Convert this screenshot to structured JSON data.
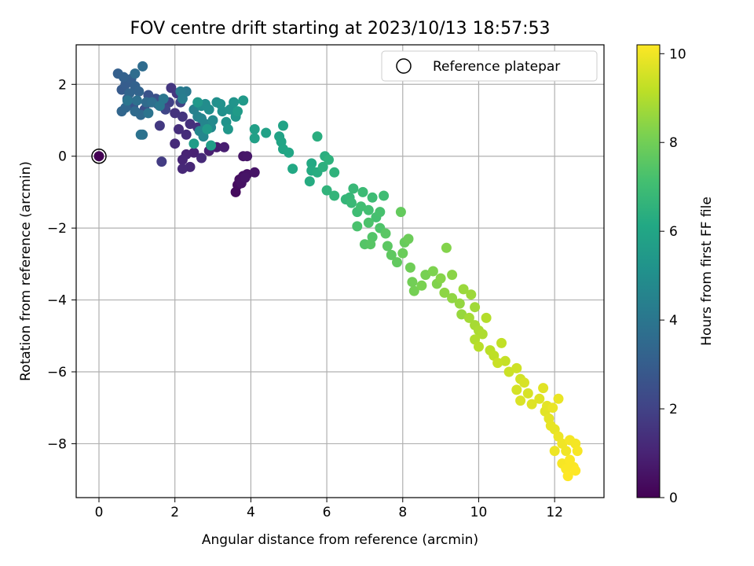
{
  "chart_data": {
    "type": "scatter",
    "title": "FOV centre drift starting at 2023/10/13 18:57:53",
    "xlabel": "Angular distance from reference (arcmin)",
    "ylabel": "Rotation from reference (arcmin)",
    "xlim": [
      -0.6,
      13.3
    ],
    "ylim": [
      -9.5,
      3.1
    ],
    "xticks": [
      0,
      2,
      4,
      6,
      8,
      10,
      12
    ],
    "yticks": [
      -8,
      -6,
      -4,
      -2,
      0,
      2
    ],
    "xtick_labels": [
      "0",
      "2",
      "4",
      "6",
      "8",
      "10",
      "12"
    ],
    "ytick_labels": [
      "−8",
      "−6",
      "−4",
      "−2",
      "0",
      "2"
    ],
    "grid": true,
    "legend": {
      "label": "Reference platepar",
      "position": "top-right"
    },
    "reference_point": {
      "x": 0,
      "y": 0
    },
    "colorbar": {
      "label": "Hours from first FF file",
      "range": [
        0,
        10.2
      ],
      "ticks": [
        0,
        2,
        4,
        6,
        8,
        10
      ],
      "tick_labels": [
        "0",
        "2",
        "4",
        "6",
        "8",
        "10"
      ],
      "colormap": "viridis"
    },
    "points": [
      [
        0.0,
        0.0,
        0.0
      ],
      [
        3.6,
        -1.0,
        0.3
      ],
      [
        3.65,
        -0.8,
        0.35
      ],
      [
        3.7,
        -0.65,
        0.4
      ],
      [
        3.8,
        -0.55,
        0.45
      ],
      [
        3.9,
        -0.5,
        0.5
      ],
      [
        4.1,
        -0.45,
        0.55
      ],
      [
        3.75,
        -0.75,
        0.5
      ],
      [
        3.85,
        -0.6,
        0.55
      ],
      [
        3.8,
        0.0,
        0.6
      ],
      [
        3.9,
        0.0,
        0.65
      ],
      [
        3.1,
        0.25,
        0.8
      ],
      [
        3.3,
        0.25,
        0.85
      ],
      [
        2.9,
        0.15,
        0.9
      ],
      [
        2.5,
        0.1,
        0.95
      ],
      [
        2.3,
        0.05,
        1.0
      ],
      [
        2.2,
        -0.1,
        1.05
      ],
      [
        2.4,
        -0.3,
        1.1
      ],
      [
        2.2,
        -0.35,
        1.15
      ],
      [
        2.7,
        -0.05,
        1.2
      ],
      [
        2.0,
        0.35,
        1.25
      ],
      [
        2.3,
        0.6,
        1.3
      ],
      [
        2.1,
        0.75,
        1.35
      ],
      [
        2.4,
        0.9,
        1.4
      ],
      [
        2.6,
        0.8,
        1.45
      ],
      [
        2.0,
        1.2,
        1.5
      ],
      [
        2.2,
        1.1,
        1.55
      ],
      [
        1.9,
        1.9,
        1.6
      ],
      [
        2.05,
        1.75,
        1.65
      ],
      [
        1.6,
        0.85,
        1.7
      ],
      [
        1.65,
        -0.15,
        1.8
      ],
      [
        1.85,
        1.5,
        1.9
      ],
      [
        2.15,
        1.5,
        2.0
      ],
      [
        1.75,
        1.3,
        2.1
      ],
      [
        1.55,
        1.45,
        2.2
      ],
      [
        1.35,
        1.5,
        2.3
      ],
      [
        1.2,
        1.3,
        2.4
      ],
      [
        1.5,
        1.6,
        2.5
      ],
      [
        1.3,
        1.7,
        2.6
      ],
      [
        0.9,
        1.4,
        2.7
      ],
      [
        0.75,
        1.6,
        2.8
      ],
      [
        0.6,
        1.85,
        2.9
      ],
      [
        0.7,
        2.0,
        3.0
      ],
      [
        0.85,
        2.15,
        3.05
      ],
      [
        0.5,
        2.3,
        3.1
      ],
      [
        0.65,
        2.2,
        3.15
      ],
      [
        0.95,
        1.95,
        3.2
      ],
      [
        1.05,
        1.8,
        3.25
      ],
      [
        0.8,
        1.75,
        3.3
      ],
      [
        0.6,
        1.25,
        3.35
      ],
      [
        0.7,
        1.35,
        3.4
      ],
      [
        1.1,
        1.15,
        3.45
      ],
      [
        0.95,
        1.25,
        3.5
      ],
      [
        1.25,
        1.5,
        3.55
      ],
      [
        1.15,
        2.5,
        3.6
      ],
      [
        0.95,
        2.3,
        3.65
      ],
      [
        1.4,
        1.5,
        3.7
      ],
      [
        1.0,
        1.55,
        3.75
      ],
      [
        1.15,
        0.6,
        3.8
      ],
      [
        1.1,
        0.6,
        3.85
      ],
      [
        1.3,
        1.2,
        3.9
      ],
      [
        0.75,
        1.55,
        3.95
      ],
      [
        1.7,
        1.6,
        4.0
      ],
      [
        1.6,
        1.4,
        4.05
      ],
      [
        2.3,
        1.8,
        4.1
      ],
      [
        2.15,
        1.8,
        4.2
      ],
      [
        2.2,
        1.6,
        4.3
      ],
      [
        2.5,
        1.3,
        4.4
      ],
      [
        2.6,
        1.1,
        4.5
      ],
      [
        2.7,
        1.05,
        4.55
      ],
      [
        2.8,
        0.9,
        4.6
      ],
      [
        2.65,
        0.7,
        4.65
      ],
      [
        2.75,
        0.55,
        4.7
      ],
      [
        2.95,
        0.8,
        4.75
      ],
      [
        3.0,
        1.0,
        4.8
      ],
      [
        2.7,
        1.4,
        4.85
      ],
      [
        2.8,
        1.45,
        4.9
      ],
      [
        2.9,
        1.3,
        4.95
      ],
      [
        3.1,
        1.5,
        5.0
      ],
      [
        3.25,
        1.25,
        5.05
      ],
      [
        3.2,
        1.45,
        5.1
      ],
      [
        3.45,
        1.3,
        5.15
      ],
      [
        3.35,
        0.95,
        5.2
      ],
      [
        3.55,
        1.5,
        5.25
      ],
      [
        3.6,
        1.1,
        5.3
      ],
      [
        3.4,
        0.75,
        5.35
      ],
      [
        2.6,
        1.5,
        5.4
      ],
      [
        3.8,
        1.55,
        5.45
      ],
      [
        2.85,
        0.75,
        5.5
      ],
      [
        3.65,
        1.25,
        5.55
      ],
      [
        2.5,
        0.35,
        5.6
      ],
      [
        2.95,
        0.3,
        5.65
      ],
      [
        4.1,
        0.75,
        5.7
      ],
      [
        4.1,
        0.5,
        5.75
      ],
      [
        4.4,
        0.65,
        5.8
      ],
      [
        4.75,
        0.55,
        5.85
      ],
      [
        4.85,
        0.85,
        5.9
      ],
      [
        4.8,
        0.4,
        5.95
      ],
      [
        4.85,
        0.2,
        6.0
      ],
      [
        5.0,
        0.1,
        6.05
      ],
      [
        5.1,
        -0.35,
        6.1
      ],
      [
        5.6,
        -0.2,
        6.15
      ],
      [
        5.6,
        -0.4,
        6.2
      ],
      [
        5.55,
        -0.7,
        6.25
      ],
      [
        5.75,
        -0.45,
        6.3
      ],
      [
        5.75,
        0.55,
        6.35
      ],
      [
        5.95,
        0.0,
        6.4
      ],
      [
        5.9,
        -0.3,
        6.45
      ],
      [
        6.05,
        -0.1,
        6.5
      ],
      [
        6.2,
        -0.45,
        6.55
      ],
      [
        6.0,
        -0.95,
        6.6
      ],
      [
        6.2,
        -1.1,
        6.65
      ],
      [
        6.5,
        -1.2,
        6.7
      ],
      [
        6.6,
        -1.15,
        6.75
      ],
      [
        6.7,
        -0.9,
        6.8
      ],
      [
        6.65,
        -1.3,
        6.85
      ],
      [
        6.95,
        -1.0,
        6.9
      ],
      [
        7.2,
        -1.15,
        6.95
      ],
      [
        7.5,
        -1.1,
        7.0
      ],
      [
        6.8,
        -1.55,
        7.0
      ],
      [
        6.9,
        -1.4,
        7.05
      ],
      [
        7.1,
        -1.5,
        7.1
      ],
      [
        7.3,
        -1.7,
        7.15
      ],
      [
        7.4,
        -1.55,
        7.2
      ],
      [
        6.8,
        -1.95,
        7.25
      ],
      [
        7.1,
        -1.85,
        7.3
      ],
      [
        7.4,
        -2.0,
        7.35
      ],
      [
        7.2,
        -2.25,
        7.4
      ],
      [
        7.0,
        -2.45,
        7.45
      ],
      [
        7.15,
        -2.45,
        7.5
      ],
      [
        7.55,
        -2.15,
        7.55
      ],
      [
        7.6,
        -2.5,
        7.6
      ],
      [
        7.7,
        -2.75,
        7.65
      ],
      [
        7.85,
        -2.95,
        7.7
      ],
      [
        7.95,
        -1.55,
        7.75
      ],
      [
        8.05,
        -2.4,
        7.8
      ],
      [
        8.0,
        -2.7,
        7.85
      ],
      [
        8.15,
        -2.3,
        7.9
      ],
      [
        8.2,
        -3.1,
        7.95
      ],
      [
        8.25,
        -3.5,
        8.0
      ],
      [
        8.3,
        -3.75,
        8.05
      ],
      [
        8.6,
        -3.3,
        8.1
      ],
      [
        8.5,
        -3.6,
        8.15
      ],
      [
        8.8,
        -3.2,
        8.2
      ],
      [
        8.9,
        -3.55,
        8.25
      ],
      [
        9.15,
        -2.55,
        8.3
      ],
      [
        9.0,
        -3.4,
        8.35
      ],
      [
        9.3,
        -3.3,
        8.4
      ],
      [
        9.1,
        -3.8,
        8.45
      ],
      [
        9.3,
        -3.95,
        8.5
      ],
      [
        9.5,
        -4.1,
        8.55
      ],
      [
        9.55,
        -4.4,
        8.6
      ],
      [
        9.6,
        -3.7,
        8.65
      ],
      [
        9.8,
        -3.85,
        8.7
      ],
      [
        9.9,
        -4.2,
        8.75
      ],
      [
        9.75,
        -4.5,
        8.8
      ],
      [
        9.9,
        -4.7,
        8.85
      ],
      [
        10.0,
        -4.85,
        8.9
      ],
      [
        10.1,
        -4.95,
        8.95
      ],
      [
        9.9,
        -5.1,
        9.0
      ],
      [
        10.2,
        -4.5,
        9.05
      ],
      [
        10.0,
        -5.3,
        9.1
      ],
      [
        10.3,
        -5.4,
        9.15
      ],
      [
        10.4,
        -5.55,
        9.2
      ],
      [
        10.6,
        -5.2,
        9.25
      ],
      [
        10.7,
        -5.7,
        9.3
      ],
      [
        10.5,
        -5.75,
        9.35
      ],
      [
        10.8,
        -6.0,
        9.4
      ],
      [
        11.0,
        -5.9,
        9.45
      ],
      [
        11.1,
        -6.2,
        9.5
      ],
      [
        11.0,
        -6.5,
        9.55
      ],
      [
        11.2,
        -6.3,
        9.6
      ],
      [
        11.3,
        -6.6,
        9.6
      ],
      [
        11.1,
        -6.8,
        9.65
      ],
      [
        11.4,
        -6.9,
        9.7
      ],
      [
        11.6,
        -6.75,
        9.7
      ],
      [
        11.7,
        -6.45,
        9.75
      ],
      [
        11.75,
        -7.1,
        9.75
      ],
      [
        11.8,
        -6.95,
        9.8
      ],
      [
        11.85,
        -7.3,
        9.8
      ],
      [
        11.9,
        -7.5,
        9.85
      ],
      [
        12.0,
        -7.6,
        9.85
      ],
      [
        11.95,
        -7.0,
        9.9
      ],
      [
        12.1,
        -6.75,
        9.9
      ],
      [
        12.1,
        -7.8,
        9.95
      ],
      [
        12.0,
        -8.2,
        9.95
      ],
      [
        12.2,
        -8.0,
        10.0
      ],
      [
        12.3,
        -8.2,
        10.0
      ],
      [
        12.4,
        -7.9,
        10.05
      ],
      [
        12.55,
        -8.0,
        10.05
      ],
      [
        12.6,
        -8.2,
        10.1
      ],
      [
        12.2,
        -8.55,
        10.1
      ],
      [
        12.3,
        -8.7,
        10.15
      ],
      [
        12.4,
        -8.45,
        10.15
      ],
      [
        12.5,
        -8.65,
        10.15
      ],
      [
        12.35,
        -8.9,
        10.2
      ],
      [
        12.55,
        -8.75,
        10.2
      ]
    ]
  }
}
